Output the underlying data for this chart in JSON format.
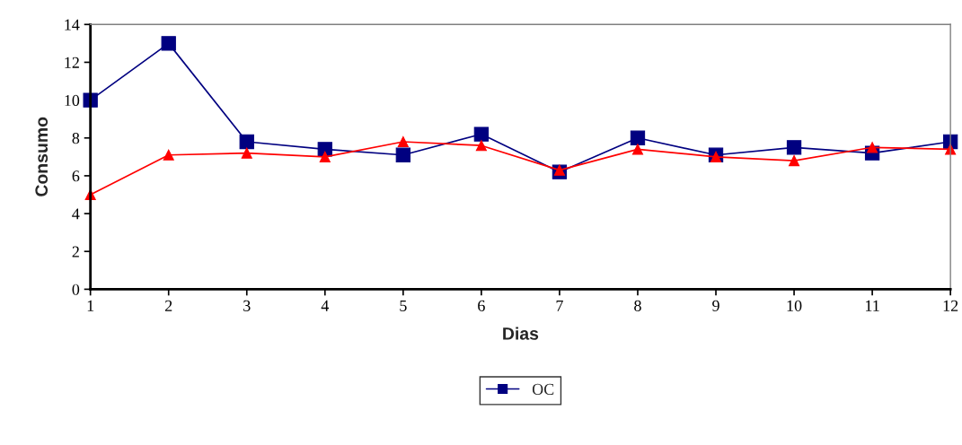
{
  "chart_data": {
    "type": "line",
    "xlabel": "Dias",
    "ylabel": "Consumo",
    "x": [
      1,
      2,
      3,
      4,
      5,
      6,
      7,
      8,
      9,
      10,
      11,
      12
    ],
    "series": [
      {
        "name": "OC",
        "color": "#000080",
        "marker": "square",
        "values": [
          10,
          13,
          7.8,
          7.4,
          7.1,
          8.2,
          6.2,
          8.0,
          7.1,
          7.5,
          7.2,
          7.8
        ]
      },
      {
        "color": "#ff0000",
        "marker": "triangle",
        "values": [
          5.0,
          7.1,
          7.2,
          7.0,
          7.8,
          7.6,
          6.3,
          7.4,
          7.0,
          6.8,
          7.5,
          7.4
        ]
      }
    ],
    "xlim": [
      1,
      12
    ],
    "xticks": [
      1,
      2,
      3,
      4,
      5,
      6,
      7,
      8,
      9,
      10,
      11,
      12
    ],
    "ylim": [
      0,
      14
    ],
    "yticks": [
      0,
      2,
      4,
      6,
      8,
      10,
      12,
      14
    ],
    "grid": false,
    "legend": "bottom",
    "line_style": "solid"
  }
}
